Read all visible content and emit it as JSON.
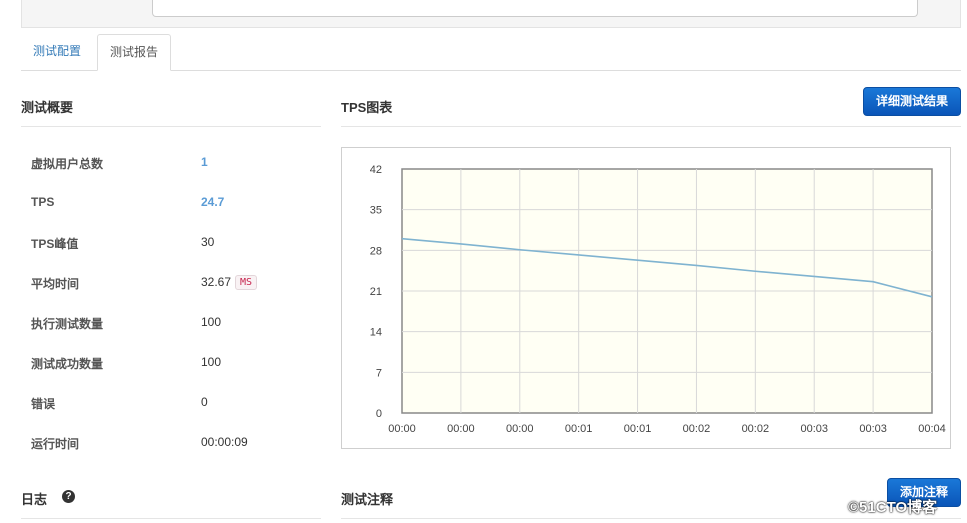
{
  "tabs": [
    {
      "label": "测试配置"
    },
    {
      "label": "测试报告"
    }
  ],
  "summary": {
    "title": "测试概要",
    "rows": [
      {
        "label": "虚拟用户总数",
        "value": "1"
      },
      {
        "label": "TPS",
        "value": "24.7"
      },
      {
        "label": "TPS峰值",
        "value": "30"
      },
      {
        "label": "平均时间",
        "value": "32.67",
        "unit": "MS"
      },
      {
        "label": "执行测试数量",
        "value": "100"
      },
      {
        "label": "测试成功数量",
        "value": "100"
      },
      {
        "label": "错误",
        "value": "0"
      },
      {
        "label": "运行时间",
        "value": "00:00:09"
      }
    ]
  },
  "tps": {
    "title": "TPS图表",
    "detail_button": "详细测试结果"
  },
  "log": {
    "title": "日志",
    "help_icon": "?"
  },
  "notes": {
    "title": "测试注释",
    "add_button": "添加注释"
  },
  "watermark": "©51CTO博客",
  "colors": {
    "accent": "#0a55b8",
    "line": "#7fb3d0",
    "plot_bg": "#fffff4"
  },
  "chart_data": {
    "type": "line",
    "x": [
      "00:00",
      "00:00",
      "00:00",
      "00:01",
      "00:01",
      "00:02",
      "00:02",
      "00:03",
      "00:03",
      "00:04"
    ],
    "series": [
      {
        "values": [
          30,
          29.1,
          28.1,
          27.2,
          26.3,
          25.4,
          24.4,
          23.5,
          22.6,
          21.7
        ]
      }
    ],
    "end_value": 20,
    "yticks": [
      0,
      7,
      14,
      21,
      28,
      35,
      42
    ],
    "ylim": [
      0,
      42
    ],
    "grid": true
  }
}
